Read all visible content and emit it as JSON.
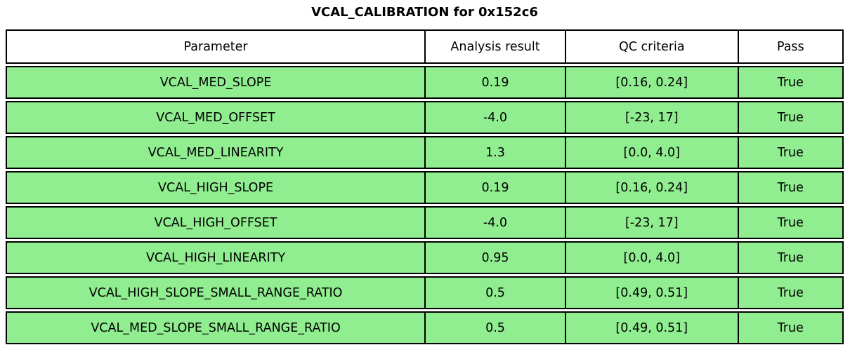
{
  "title": "VCAL_CALIBRATION for 0x152c6",
  "colors": {
    "pass_row_background": "#90ee90",
    "header_background": "#ffffff",
    "border": "#000000",
    "text": "#000000"
  },
  "chart_data": {
    "type": "table",
    "title": "VCAL_CALIBRATION for 0x152c6",
    "columns": [
      "Parameter",
      "Analysis result",
      "QC criteria",
      "Pass"
    ],
    "rows": [
      [
        "VCAL_MED_SLOPE",
        "0.19",
        "[0.16, 0.24]",
        "True"
      ],
      [
        "VCAL_MED_OFFSET",
        "-4.0",
        "[-23, 17]",
        "True"
      ],
      [
        "VCAL_MED_LINEARITY",
        "1.3",
        "[0.0, 4.0]",
        "True"
      ],
      [
        "VCAL_HIGH_SLOPE",
        "0.19",
        "[0.16, 0.24]",
        "True"
      ],
      [
        "VCAL_HIGH_OFFSET",
        "-4.0",
        "[-23, 17]",
        "True"
      ],
      [
        "VCAL_HIGH_LINEARITY",
        "0.95",
        "[0.0, 4.0]",
        "True"
      ],
      [
        "VCAL_HIGH_SLOPE_SMALL_RANGE_RATIO",
        "0.5",
        "[0.49, 0.51]",
        "True"
      ],
      [
        "VCAL_MED_SLOPE_SMALL_RANGE_RATIO",
        "0.5",
        "[0.49, 0.51]",
        "True"
      ]
    ],
    "row_colors": [
      "#90ee90",
      "#90ee90",
      "#90ee90",
      "#90ee90",
      "#90ee90",
      "#90ee90",
      "#90ee90",
      "#90ee90"
    ],
    "legend": null,
    "grid": false
  }
}
